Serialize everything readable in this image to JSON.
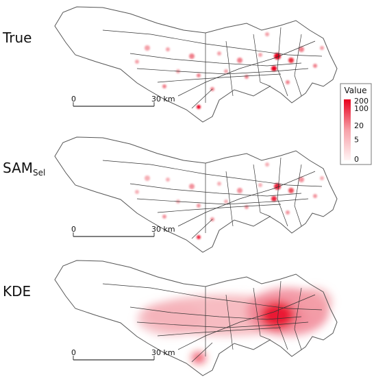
{
  "panels": [
    {
      "label": "True",
      "scale_bar": {
        "start": "0",
        "end": "30 km"
      }
    },
    {
      "label": "SAM",
      "label_subscript": "Sel",
      "scale_bar": {
        "start": "0",
        "end": "30 km"
      }
    },
    {
      "label": "KDE",
      "scale_bar": {
        "start": "0",
        "end": "30 km"
      }
    }
  ],
  "legend": {
    "title": "Value",
    "ticks": [
      200,
      100,
      20,
      5,
      0
    ]
  }
}
